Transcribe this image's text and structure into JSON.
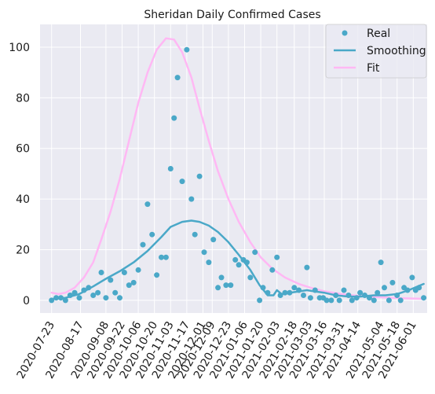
{
  "chart_data": {
    "type": "scatter",
    "title": "Sheridan Daily Confirmed Cases",
    "xlabel": "",
    "ylabel": "",
    "ylim": [
      -5,
      109
    ],
    "yticks": [
      0,
      20,
      40,
      60,
      80,
      100
    ],
    "xlim": [
      "2020-07-13",
      "2021-06-13"
    ],
    "xticks": [
      "2020-07-23",
      "2020-08-17",
      "2020-09-08",
      "2020-09-22",
      "2020-10-06",
      "2020-10-20",
      "2020-11-03",
      "2020-11-17",
      "2020-12-01",
      "2020-12-09",
      "2020-12-23",
      "2021-01-06",
      "2021-01-20",
      "2021-02-03",
      "2021-02-18",
      "2021-03-03",
      "2021-03-16",
      "2021-03-31",
      "2021-04-14",
      "2021-05-04",
      "2021-05-18",
      "2021-06-01"
    ],
    "grid": true,
    "legend": "top-right",
    "colors": {
      "real": "#4aa8c8",
      "smoothing": "#4aa8c8",
      "fit": "#ffb8f4",
      "background": "#eaeaf2",
      "grid": "#ffffff"
    },
    "series": [
      {
        "name": "Real",
        "kind": "markers",
        "points": [
          [
            "2020-07-23",
            0
          ],
          [
            "2020-07-27",
            1
          ],
          [
            "2020-07-31",
            1
          ],
          [
            "2020-08-04",
            0
          ],
          [
            "2020-08-08",
            2
          ],
          [
            "2020-08-12",
            3
          ],
          [
            "2020-08-16",
            1
          ],
          [
            "2020-08-20",
            4
          ],
          [
            "2020-08-24",
            5
          ],
          [
            "2020-08-28",
            2
          ],
          [
            "2020-09-01",
            3
          ],
          [
            "2020-09-04",
            11
          ],
          [
            "2020-09-08",
            1
          ],
          [
            "2020-09-12",
            8
          ],
          [
            "2020-09-16",
            3
          ],
          [
            "2020-09-20",
            1
          ],
          [
            "2020-09-24",
            11
          ],
          [
            "2020-09-28",
            6
          ],
          [
            "2020-10-02",
            7
          ],
          [
            "2020-10-06",
            12
          ],
          [
            "2020-10-10",
            22
          ],
          [
            "2020-10-14",
            38
          ],
          [
            "2020-10-18",
            26
          ],
          [
            "2020-10-22",
            10
          ],
          [
            "2020-10-26",
            17
          ],
          [
            "2020-10-30",
            17
          ],
          [
            "2020-11-03",
            52
          ],
          [
            "2020-11-06",
            72
          ],
          [
            "2020-11-09",
            88
          ],
          [
            "2020-11-13",
            47
          ],
          [
            "2020-11-17",
            99
          ],
          [
            "2020-11-21",
            40
          ],
          [
            "2020-11-24",
            26
          ],
          [
            "2020-11-28",
            49
          ],
          [
            "2020-12-02",
            19
          ],
          [
            "2020-12-06",
            15
          ],
          [
            "2020-12-10",
            24
          ],
          [
            "2020-12-14",
            5
          ],
          [
            "2020-12-17",
            9
          ],
          [
            "2020-12-21",
            6
          ],
          [
            "2020-12-25",
            6
          ],
          [
            "2020-12-29",
            16
          ],
          [
            "2021-01-01",
            14
          ],
          [
            "2021-01-05",
            16
          ],
          [
            "2021-01-08",
            15
          ],
          [
            "2021-01-11",
            9
          ],
          [
            "2021-01-15",
            19
          ],
          [
            "2021-01-19",
            0
          ],
          [
            "2021-01-22",
            5
          ],
          [
            "2021-01-26",
            3
          ],
          [
            "2021-01-30",
            12
          ],
          [
            "2021-02-03",
            17
          ],
          [
            "2021-02-06",
            2
          ],
          [
            "2021-02-10",
            3
          ],
          [
            "2021-02-14",
            3
          ],
          [
            "2021-02-18",
            5
          ],
          [
            "2021-02-22",
            4
          ],
          [
            "2021-02-26",
            2
          ],
          [
            "2021-03-01",
            13
          ],
          [
            "2021-03-04",
            1
          ],
          [
            "2021-03-08",
            4
          ],
          [
            "2021-03-12",
            1
          ],
          [
            "2021-03-15",
            1
          ],
          [
            "2021-03-18",
            0
          ],
          [
            "2021-03-22",
            0
          ],
          [
            "2021-03-26",
            2
          ],
          [
            "2021-03-29",
            0
          ],
          [
            "2021-04-02",
            4
          ],
          [
            "2021-04-06",
            2
          ],
          [
            "2021-04-09",
            0
          ],
          [
            "2021-04-13",
            1
          ],
          [
            "2021-04-16",
            3
          ],
          [
            "2021-04-20",
            2
          ],
          [
            "2021-04-24",
            1
          ],
          [
            "2021-04-28",
            0
          ],
          [
            "2021-05-01",
            3
          ],
          [
            "2021-05-04",
            15
          ],
          [
            "2021-05-07",
            5
          ],
          [
            "2021-05-11",
            0
          ],
          [
            "2021-05-14",
            7
          ],
          [
            "2021-05-18",
            2
          ],
          [
            "2021-05-21",
            0
          ],
          [
            "2021-05-24",
            5
          ],
          [
            "2021-05-27",
            4
          ],
          [
            "2021-05-31",
            9
          ],
          [
            "2021-06-03",
            4
          ],
          [
            "2021-06-06",
            5
          ],
          [
            "2021-06-10",
            1
          ]
        ]
      },
      {
        "name": "Smoothing",
        "kind": "line",
        "points": [
          [
            "2020-07-23",
            0.5
          ],
          [
            "2020-08-04",
            1
          ],
          [
            "2020-08-16",
            2.5
          ],
          [
            "2020-08-28",
            5.5
          ],
          [
            "2020-09-08",
            8.5
          ],
          [
            "2020-09-20",
            11.5
          ],
          [
            "2020-10-02",
            15
          ],
          [
            "2020-10-14",
            19.5
          ],
          [
            "2020-10-26",
            25
          ],
          [
            "2020-11-03",
            29
          ],
          [
            "2020-11-13",
            31
          ],
          [
            "2020-11-21",
            31.5
          ],
          [
            "2020-11-28",
            31
          ],
          [
            "2020-12-06",
            29.5
          ],
          [
            "2020-12-14",
            27
          ],
          [
            "2020-12-23",
            23
          ],
          [
            "2021-01-01",
            18
          ],
          [
            "2021-01-11",
            12
          ],
          [
            "2021-01-19",
            6
          ],
          [
            "2021-01-26",
            2
          ],
          [
            "2021-01-31",
            2
          ],
          [
            "2021-02-03",
            4
          ],
          [
            "2021-02-07",
            2.5
          ],
          [
            "2021-02-14",
            3
          ],
          [
            "2021-02-22",
            3.5
          ],
          [
            "2021-03-01",
            4
          ],
          [
            "2021-03-08",
            3.5
          ],
          [
            "2021-03-16",
            3
          ],
          [
            "2021-03-26",
            2
          ],
          [
            "2021-04-06",
            1.5
          ],
          [
            "2021-04-16",
            1.5
          ],
          [
            "2021-04-28",
            2
          ],
          [
            "2021-05-08",
            2
          ],
          [
            "2021-05-18",
            2.5
          ],
          [
            "2021-05-28",
            4
          ],
          [
            "2021-06-10",
            6.5
          ]
        ]
      },
      {
        "name": "Fit",
        "kind": "line",
        "points": [
          [
            "2020-07-23",
            3
          ],
          [
            "2020-07-29",
            2.5
          ],
          [
            "2020-08-04",
            3
          ],
          [
            "2020-08-12",
            5
          ],
          [
            "2020-08-20",
            9
          ],
          [
            "2020-08-28",
            15
          ],
          [
            "2020-09-04",
            24
          ],
          [
            "2020-09-12",
            35
          ],
          [
            "2020-09-20",
            48
          ],
          [
            "2020-09-28",
            63
          ],
          [
            "2020-10-06",
            78
          ],
          [
            "2020-10-14",
            90
          ],
          [
            "2020-10-22",
            99
          ],
          [
            "2020-10-30",
            103.5
          ],
          [
            "2020-11-06",
            103
          ],
          [
            "2020-11-13",
            98
          ],
          [
            "2020-11-21",
            88
          ],
          [
            "2020-11-28",
            76
          ],
          [
            "2020-12-06",
            63
          ],
          [
            "2020-12-14",
            51
          ],
          [
            "2020-12-23",
            40
          ],
          [
            "2021-01-01",
            31
          ],
          [
            "2021-01-11",
            23
          ],
          [
            "2021-01-20",
            17
          ],
          [
            "2021-01-30",
            12.5
          ],
          [
            "2021-02-10",
            9
          ],
          [
            "2021-02-22",
            6.5
          ],
          [
            "2021-03-04",
            5
          ],
          [
            "2021-03-16",
            3.6
          ],
          [
            "2021-03-31",
            2.5
          ],
          [
            "2021-04-14",
            1.8
          ],
          [
            "2021-05-04",
            1.2
          ],
          [
            "2021-05-18",
            0.9
          ],
          [
            "2021-06-01",
            0.7
          ],
          [
            "2021-06-10",
            0.6
          ]
        ]
      }
    ]
  }
}
